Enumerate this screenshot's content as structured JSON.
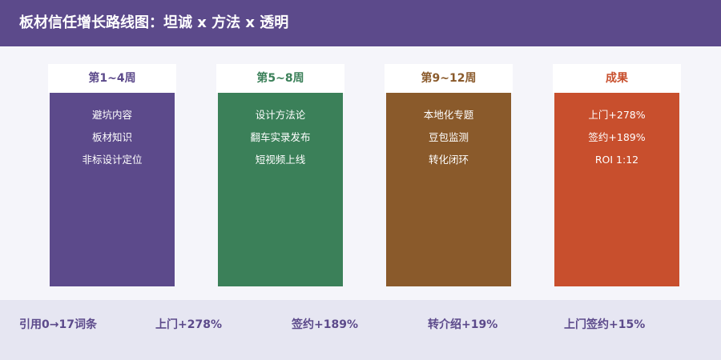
{
  "header": {
    "title": "板材信任增长路线图：坦诚 x 方法 x 透明"
  },
  "columns": [
    {
      "title": "第1~4周",
      "accent": "#5c4a8b",
      "items": [
        "避坑内容",
        "板材知识",
        "非标设计定位"
      ]
    },
    {
      "title": "第5~8周",
      "accent": "#3b8059",
      "items": [
        "设计方法论",
        "翻车实录发布",
        "短视频上线"
      ]
    },
    {
      "title": "第9~12周",
      "accent": "#8a5a2b",
      "items": [
        "本地化专题",
        "豆包监测",
        "转化闭环"
      ]
    },
    {
      "title": "成果",
      "accent": "#c84f2d",
      "items": [
        "上门+278%",
        "签约+189%",
        "ROI 1:12"
      ]
    }
  ],
  "footer": {
    "items": [
      "引用0→17词条",
      "上门+278%",
      "签约+189%",
      "转介绍+19%",
      "上门签约+15%"
    ]
  }
}
